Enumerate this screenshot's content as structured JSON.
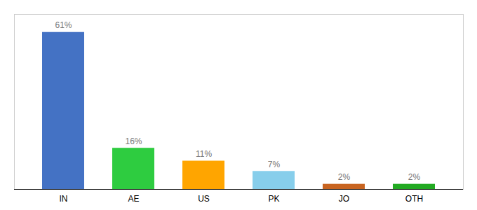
{
  "chart_data": {
    "type": "bar",
    "categories": [
      "IN",
      "AE",
      "US",
      "PK",
      "JO",
      "OTH"
    ],
    "values": [
      61,
      16,
      11,
      7,
      2,
      2
    ],
    "value_labels": [
      "61%",
      "16%",
      "11%",
      "7%",
      "2%",
      "2%"
    ],
    "colors": [
      "#4472C4",
      "#2ECC40",
      "#FFA500",
      "#87CEEB",
      "#C86420",
      "#22AA22"
    ],
    "ylim": [
      0,
      68
    ],
    "data_labels": true,
    "tick_labels": "x",
    "grid": false
  }
}
